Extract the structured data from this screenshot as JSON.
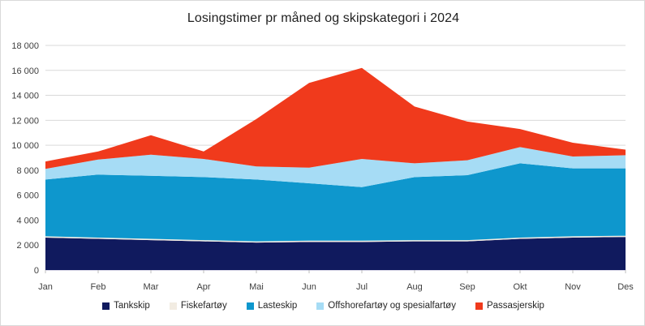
{
  "title": "Losingstimer pr måned og skipskategori i 2024",
  "chart_data": {
    "type": "area",
    "stacked": true,
    "title": "Losingstimer pr måned og skipskategori i 2024",
    "xlabel": "",
    "ylabel": "",
    "categories": [
      "Jan",
      "Feb",
      "Mar",
      "Apr",
      "Mai",
      "Jun",
      "Jul",
      "Aug",
      "Sep",
      "Okt",
      "Nov",
      "Des"
    ],
    "series": [
      {
        "name": "Tankskip",
        "color": "#101a5e",
        "values": [
          2600,
          2500,
          2400,
          2300,
          2200,
          2250,
          2250,
          2300,
          2300,
          2500,
          2600,
          2650
        ]
      },
      {
        "name": "Fiskefartøy",
        "color": "#f2ece2",
        "values": [
          100,
          100,
          100,
          100,
          100,
          100,
          100,
          100,
          100,
          100,
          100,
          100
        ]
      },
      {
        "name": "Lasteskip",
        "color": "#0e97cd",
        "values": [
          4550,
          5050,
          5050,
          5050,
          4950,
          4600,
          4300,
          5050,
          5200,
          5950,
          5450,
          5400
        ]
      },
      {
        "name": "Offshorefartøy og spesialfartøy",
        "color": "#a6dcf5",
        "values": [
          850,
          1200,
          1700,
          1450,
          1050,
          1250,
          2250,
          1100,
          1200,
          1300,
          950,
          1050
        ]
      },
      {
        "name": "Passasjerskip",
        "color": "#f03a1c",
        "values": [
          600,
          650,
          1550,
          600,
          3800,
          6800,
          7300,
          4550,
          3100,
          1450,
          1100,
          450
        ]
      }
    ],
    "totals_by_month": [
      8700,
      9500,
      10800,
      9500,
      12100,
      15000,
      16200,
      13100,
      11900,
      11300,
      10200,
      9650
    ],
    "ylim": [
      0,
      18000
    ],
    "ytick_step": 2000,
    "ytick_labels": [
      "0",
      "2 000",
      "4 000",
      "6 000",
      "8 000",
      "10 000",
      "12 000",
      "14 000",
      "16 000",
      "18 000"
    ],
    "grid": true,
    "legend_position": "bottom"
  },
  "colors": {
    "gridline": "#d9d9d9",
    "axis_line": "#c6c2dd",
    "tick": "#bfbfbf",
    "axis_text": "#404040",
    "title_text": "#1f1f1f",
    "background": "#ffffff",
    "border": "#d9d9d9"
  }
}
